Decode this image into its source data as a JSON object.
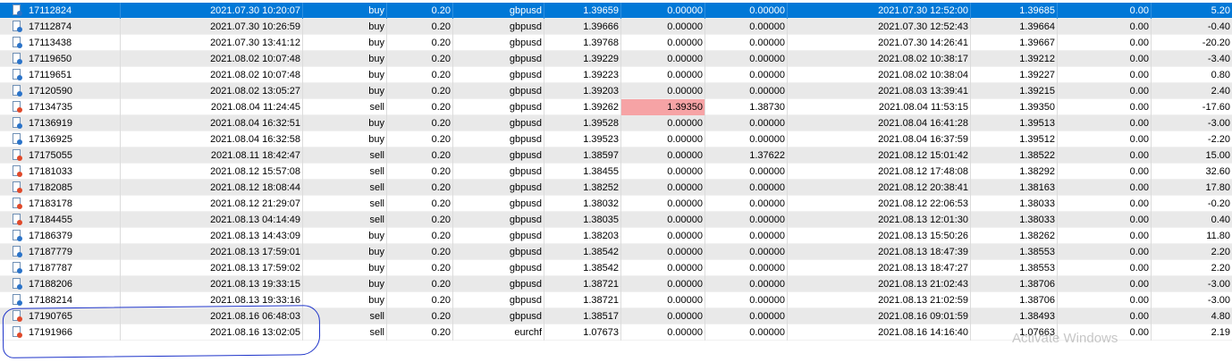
{
  "trades": [
    {
      "ticket": "17112824",
      "open_time": "2021.07.30 10:20:07",
      "type": "buy",
      "size": "0.20",
      "symbol": "gbpusd",
      "price": "1.39659",
      "sl": "0.00000",
      "tp": "0.00000",
      "close_time": "2021.07.30 12:52:00",
      "close_price": "1.39685",
      "swap": "0.00",
      "profit": "5.20",
      "selected": true
    },
    {
      "ticket": "17112874",
      "open_time": "2021.07.30 10:26:59",
      "type": "buy",
      "size": "0.20",
      "symbol": "gbpusd",
      "price": "1.39666",
      "sl": "0.00000",
      "tp": "0.00000",
      "close_time": "2021.07.30 12:52:43",
      "close_price": "1.39664",
      "swap": "0.00",
      "profit": "-0.40"
    },
    {
      "ticket": "17113438",
      "open_time": "2021.07.30 13:41:12",
      "type": "buy",
      "size": "0.20",
      "symbol": "gbpusd",
      "price": "1.39768",
      "sl": "0.00000",
      "tp": "0.00000",
      "close_time": "2021.07.30 14:26:41",
      "close_price": "1.39667",
      "swap": "0.00",
      "profit": "-20.20"
    },
    {
      "ticket": "17119650",
      "open_time": "2021.08.02 10:07:48",
      "type": "buy",
      "size": "0.20",
      "symbol": "gbpusd",
      "price": "1.39229",
      "sl": "0.00000",
      "tp": "0.00000",
      "close_time": "2021.08.02 10:38:17",
      "close_price": "1.39212",
      "swap": "0.00",
      "profit": "-3.40"
    },
    {
      "ticket": "17119651",
      "open_time": "2021.08.02 10:07:48",
      "type": "buy",
      "size": "0.20",
      "symbol": "gbpusd",
      "price": "1.39223",
      "sl": "0.00000",
      "tp": "0.00000",
      "close_time": "2021.08.02 10:38:04",
      "close_price": "1.39227",
      "swap": "0.00",
      "profit": "0.80"
    },
    {
      "ticket": "17120590",
      "open_time": "2021.08.02 13:05:27",
      "type": "buy",
      "size": "0.20",
      "symbol": "gbpusd",
      "price": "1.39203",
      "sl": "0.00000",
      "tp": "0.00000",
      "close_time": "2021.08.03 13:39:41",
      "close_price": "1.39215",
      "swap": "0.00",
      "profit": "2.40"
    },
    {
      "ticket": "17134735",
      "open_time": "2021.08.04 11:24:45",
      "type": "sell",
      "size": "0.20",
      "symbol": "gbpusd",
      "price": "1.39262",
      "sl": "1.39350",
      "tp": "1.38730",
      "close_time": "2021.08.04 11:53:15",
      "close_price": "1.39350",
      "swap": "0.00",
      "profit": "-17.60",
      "sl_hit": true
    },
    {
      "ticket": "17136919",
      "open_time": "2021.08.04 16:32:51",
      "type": "buy",
      "size": "0.20",
      "symbol": "gbpusd",
      "price": "1.39528",
      "sl": "0.00000",
      "tp": "0.00000",
      "close_time": "2021.08.04 16:41:28",
      "close_price": "1.39513",
      "swap": "0.00",
      "profit": "-3.00"
    },
    {
      "ticket": "17136925",
      "open_time": "2021.08.04 16:32:58",
      "type": "buy",
      "size": "0.20",
      "symbol": "gbpusd",
      "price": "1.39523",
      "sl": "0.00000",
      "tp": "0.00000",
      "close_time": "2021.08.04 16:37:59",
      "close_price": "1.39512",
      "swap": "0.00",
      "profit": "-2.20"
    },
    {
      "ticket": "17175055",
      "open_time": "2021.08.11 18:42:47",
      "type": "sell",
      "size": "0.20",
      "symbol": "gbpusd",
      "price": "1.38597",
      "sl": "0.00000",
      "tp": "1.37622",
      "close_time": "2021.08.12 15:01:42",
      "close_price": "1.38522",
      "swap": "0.00",
      "profit": "15.00"
    },
    {
      "ticket": "17181033",
      "open_time": "2021.08.12 15:57:08",
      "type": "sell",
      "size": "0.20",
      "symbol": "gbpusd",
      "price": "1.38455",
      "sl": "0.00000",
      "tp": "0.00000",
      "close_time": "2021.08.12 17:48:08",
      "close_price": "1.38292",
      "swap": "0.00",
      "profit": "32.60"
    },
    {
      "ticket": "17182085",
      "open_time": "2021.08.12 18:08:44",
      "type": "sell",
      "size": "0.20",
      "symbol": "gbpusd",
      "price": "1.38252",
      "sl": "0.00000",
      "tp": "0.00000",
      "close_time": "2021.08.12 20:38:41",
      "close_price": "1.38163",
      "swap": "0.00",
      "profit": "17.80"
    },
    {
      "ticket": "17183178",
      "open_time": "2021.08.12 21:29:07",
      "type": "sell",
      "size": "0.20",
      "symbol": "gbpusd",
      "price": "1.38032",
      "sl": "0.00000",
      "tp": "0.00000",
      "close_time": "2021.08.12 22:06:53",
      "close_price": "1.38033",
      "swap": "0.00",
      "profit": "-0.20"
    },
    {
      "ticket": "17184455",
      "open_time": "2021.08.13 04:14:49",
      "type": "sell",
      "size": "0.20",
      "symbol": "gbpusd",
      "price": "1.38035",
      "sl": "0.00000",
      "tp": "0.00000",
      "close_time": "2021.08.13 12:01:30",
      "close_price": "1.38033",
      "swap": "0.00",
      "profit": "0.40"
    },
    {
      "ticket": "17186379",
      "open_time": "2021.08.13 14:43:09",
      "type": "buy",
      "size": "0.20",
      "symbol": "gbpusd",
      "price": "1.38203",
      "sl": "0.00000",
      "tp": "0.00000",
      "close_time": "2021.08.13 15:50:26",
      "close_price": "1.38262",
      "swap": "0.00",
      "profit": "11.80"
    },
    {
      "ticket": "17187779",
      "open_time": "2021.08.13 17:59:01",
      "type": "buy",
      "size": "0.20",
      "symbol": "gbpusd",
      "price": "1.38542",
      "sl": "0.00000",
      "tp": "0.00000",
      "close_time": "2021.08.13 18:47:39",
      "close_price": "1.38553",
      "swap": "0.00",
      "profit": "2.20"
    },
    {
      "ticket": "17187787",
      "open_time": "2021.08.13 17:59:02",
      "type": "buy",
      "size": "0.20",
      "symbol": "gbpusd",
      "price": "1.38542",
      "sl": "0.00000",
      "tp": "0.00000",
      "close_time": "2021.08.13 18:47:27",
      "close_price": "1.38553",
      "swap": "0.00",
      "profit": "2.20"
    },
    {
      "ticket": "17188206",
      "open_time": "2021.08.13 19:33:15",
      "type": "buy",
      "size": "0.20",
      "symbol": "gbpusd",
      "price": "1.38721",
      "sl": "0.00000",
      "tp": "0.00000",
      "close_time": "2021.08.13 21:02:43",
      "close_price": "1.38706",
      "swap": "0.00",
      "profit": "-3.00"
    },
    {
      "ticket": "17188214",
      "open_time": "2021.08.13 19:33:16",
      "type": "buy",
      "size": "0.20",
      "symbol": "gbpusd",
      "price": "1.38721",
      "sl": "0.00000",
      "tp": "0.00000",
      "close_time": "2021.08.13 21:02:59",
      "close_price": "1.38706",
      "swap": "0.00",
      "profit": "-3.00"
    },
    {
      "ticket": "17190765",
      "open_time": "2021.08.16 06:48:03",
      "type": "sell",
      "size": "0.20",
      "symbol": "gbpusd",
      "price": "1.38517",
      "sl": "0.00000",
      "tp": "0.00000",
      "close_time": "2021.08.16 09:01:59",
      "close_price": "1.38493",
      "swap": "0.00",
      "profit": "4.80"
    },
    {
      "ticket": "17191966",
      "open_time": "2021.08.16 13:02:05",
      "type": "sell",
      "size": "0.20",
      "symbol": "eurchf",
      "price": "1.07673",
      "sl": "0.00000",
      "tp": "0.00000",
      "close_time": "2021.08.16 14:16:40",
      "close_price": "1.07663",
      "swap": "0.00",
      "profit": "2.19"
    }
  ],
  "colors": {
    "selected_row": "#0078d7",
    "stop_loss_highlight": "#f6a3a5",
    "annotation_ink": "#1d33c9",
    "buy_icon": "#2a73c9",
    "sell_icon": "#e0492a"
  },
  "icons": {
    "buy": "order-buy-icon",
    "sell": "order-sell-icon"
  },
  "watermark": {
    "text": "Activate Windows"
  }
}
